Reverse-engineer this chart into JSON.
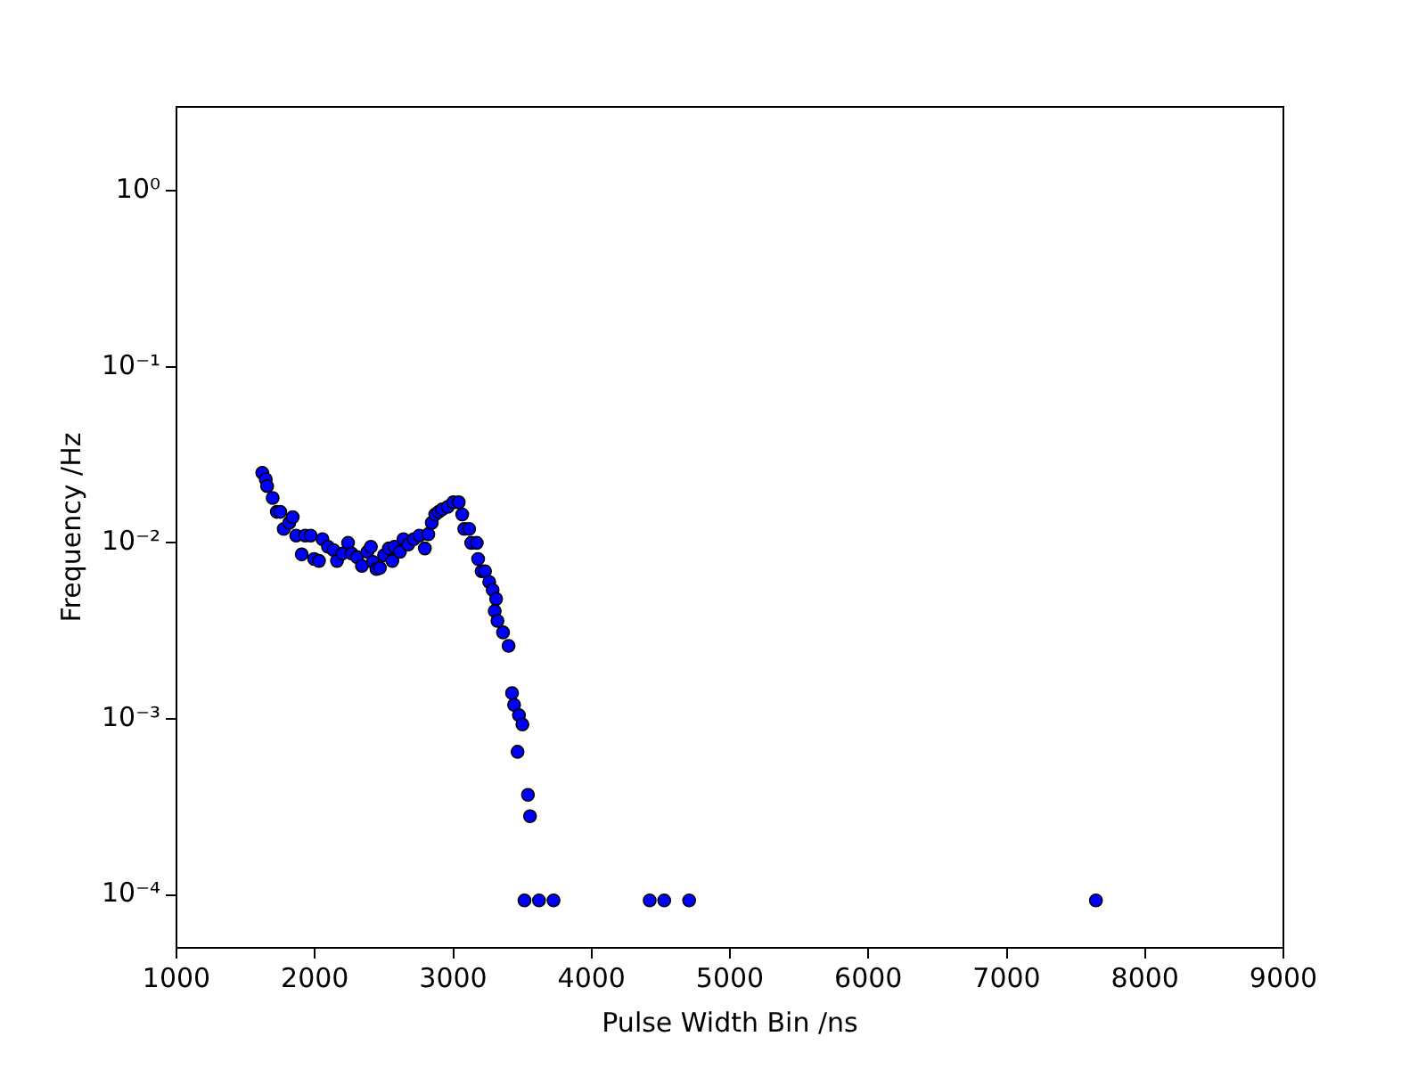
{
  "chart_data": {
    "type": "scatter",
    "xlabel": "Pulse Width Bin /ns",
    "ylabel": "Frequency /Hz",
    "log": "y",
    "grid": false,
    "marker": "circle",
    "legend": false,
    "xlim": [
      1000,
      9000
    ],
    "xticks": [
      1000,
      2000,
      3000,
      4000,
      5000,
      6000,
      7000,
      8000,
      9000
    ],
    "ylim": [
      5e-05,
      3
    ],
    "yticks": [
      {
        "value": 0.0001,
        "label": "10⁻⁴"
      },
      {
        "value": 0.001,
        "label": "10⁻³"
      },
      {
        "value": 0.01,
        "label": "10⁻²"
      },
      {
        "value": 0.1,
        "label": "10⁻¹"
      },
      {
        "value": 1,
        "label": "10⁰"
      }
    ],
    "series": [
      {
        "color": "#0000ff",
        "x": [
          1620,
          1645,
          1655,
          1695,
          1725,
          1750,
          1775,
          1815,
          1840,
          1865,
          1905,
          1930,
          1970,
          1995,
          2030,
          2055,
          2095,
          2135,
          2160,
          2200,
          2240,
          2265,
          2305,
          2340,
          2380,
          2405,
          2420,
          2445,
          2470,
          2500,
          2535,
          2560,
          2575,
          2615,
          2640,
          2675,
          2715,
          2755,
          2795,
          2820,
          2845,
          2870,
          2895,
          2920,
          2960,
          3000,
          3040,
          3065,
          3080,
          3115,
          3130,
          3170,
          3180,
          3205,
          3230,
          3260,
          3285,
          3300,
          3310,
          3320,
          3360,
          3400,
          3425,
          3440,
          3465,
          3475,
          3500,
          3515,
          3540,
          3555,
          3620,
          3725,
          4420,
          4525,
          4705,
          7645
        ],
        "values": [
          0.025,
          0.023,
          0.021,
          0.018,
          0.015,
          0.015,
          0.012,
          0.013,
          0.014,
          0.011,
          0.0086,
          0.011,
          0.011,
          0.0081,
          0.0079,
          0.0105,
          0.0095,
          0.0091,
          0.0079,
          0.0087,
          0.01,
          0.0087,
          0.0083,
          0.0074,
          0.0089,
          0.0095,
          0.0078,
          0.0071,
          0.0072,
          0.0085,
          0.0093,
          0.0079,
          0.0095,
          0.0089,
          0.0105,
          0.0098,
          0.0105,
          0.011,
          0.0093,
          0.0112,
          0.013,
          0.0145,
          0.015,
          0.0155,
          0.016,
          0.017,
          0.017,
          0.0145,
          0.012,
          0.012,
          0.01,
          0.01,
          0.0081,
          0.0069,
          0.0069,
          0.006,
          0.0054,
          0.0041,
          0.0048,
          0.0036,
          0.0031,
          0.0026,
          0.0014,
          0.0012,
          0.00065,
          0.00105,
          0.00093,
          9.3e-05,
          0.00037,
          0.00028,
          9.3e-05,
          9.3e-05,
          9.3e-05,
          9.3e-05,
          9.3e-05,
          9.3e-05
        ]
      }
    ]
  }
}
